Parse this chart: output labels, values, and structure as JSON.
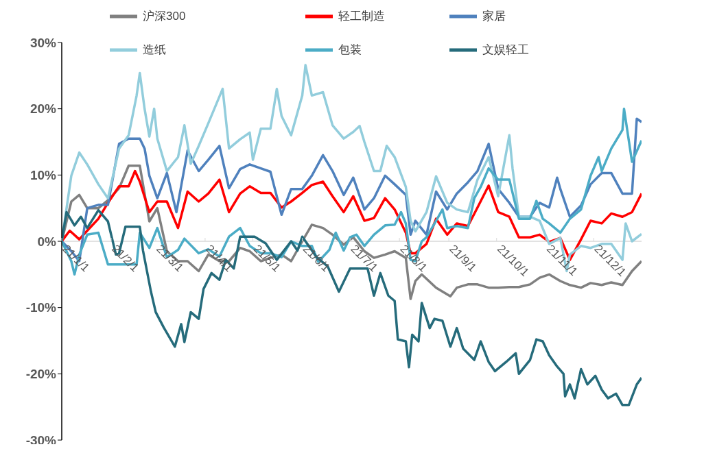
{
  "chart_data": {
    "type": "line",
    "legend": "top",
    "xlim": [
      "--01-01",
      "--12-31"
    ],
    "ylim": [
      -30,
      30
    ],
    "xticks": [
      {
        "value": "--01-01",
        "label": "21/1/1"
      },
      {
        "value": "--02-01",
        "label": "21/2/1"
      },
      {
        "value": "--03-01",
        "label": "21/3/1"
      },
      {
        "value": "--04-01",
        "label": "21/4/1"
      },
      {
        "value": "--05-01",
        "label": "21/5/1"
      },
      {
        "value": "--06-01",
        "label": "21/6/1"
      },
      {
        "value": "--07-01",
        "label": "21/7/1"
      },
      {
        "value": "--08-01",
        "label": "21/8/1"
      },
      {
        "value": "--09-01",
        "label": "21/9/1"
      },
      {
        "value": "--10-01",
        "label": "21/10/1"
      },
      {
        "value": "--11-01",
        "label": "21/11/1"
      },
      {
        "value": "--12-01",
        "label": "21/12/1"
      }
    ],
    "yticks": [
      {
        "value": -30,
        "label": "-30%"
      },
      {
        "value": -20,
        "label": "-20%"
      },
      {
        "value": -10,
        "label": "-10%"
      },
      {
        "value": 0,
        "label": "0%"
      },
      {
        "value": 10,
        "label": "10%"
      },
      {
        "value": 20,
        "label": "20%"
      },
      {
        "value": 30,
        "label": "30%"
      }
    ],
    "series": [
      {
        "name": "沪深300",
        "color": "#808080",
        "x": [
          "--01-01",
          "--01-07",
          "--01-12",
          "--01-17",
          "--01-24",
          "--01-30",
          "--02-06",
          "--02-12",
          "--02-19",
          "--02-25",
          "--03-02",
          "--03-08",
          "--03-15",
          "--03-21",
          "--03-28",
          "--04-03",
          "--04-10",
          "--04-16",
          "--04-23",
          "--04-29",
          "--05-06",
          "--05-12",
          "--05-19",
          "--05-25",
          "--06-01",
          "--06-07",
          "--06-14",
          "--06-20",
          "--06-27",
          "--07-03",
          "--07-10",
          "--07-16",
          "--07-23",
          "--07-29",
          "--08-05",
          "--08-08",
          "--08-11",
          "--08-15",
          "--08-24",
          "--09-02",
          "--09-06",
          "--09-13",
          "--09-19",
          "--09-26",
          "--10-02",
          "--10-09",
          "--10-15",
          "--10-22",
          "--10-28",
          "--11-03",
          "--11-10",
          "--11-16",
          "--11-23",
          "--11-29",
          "--12-06",
          "--12-12",
          "--12-19",
          "--12-25",
          "--12-31"
        ],
        "values": [
          0,
          6,
          7,
          5,
          5,
          6.2,
          8,
          11.4,
          11.4,
          3,
          5,
          -1.5,
          -3,
          -3,
          -4.5,
          -2,
          -3,
          -3,
          -1,
          -1.5,
          -3,
          -2.5,
          -2,
          -3,
          0,
          2.5,
          2,
          1,
          -0.5,
          0.6,
          -1.5,
          -2.5,
          -2,
          -1.5,
          -2.5,
          -8.7,
          -6,
          -5,
          -7,
          -8.3,
          -7,
          -6.5,
          -6.5,
          -7,
          -7,
          -6.9,
          -6.9,
          -6.5,
          -5.5,
          -5,
          -6,
          -6.6,
          -7,
          -6.3,
          -6.6,
          -6.2,
          -6.6,
          -4.5,
          -3
        ]
      },
      {
        "name": "轻工制造",
        "color": "#ff0000",
        "x": [
          "--01-01",
          "--01-06",
          "--01-12",
          "--01-17",
          "--01-24",
          "--01-30",
          "--02-06",
          "--02-12",
          "--02-16",
          "--02-19",
          "--02-25",
          "--03-02",
          "--03-08",
          "--03-15",
          "--03-21",
          "--03-28",
          "--04-03",
          "--04-10",
          "--04-16",
          "--04-23",
          "--04-29",
          "--05-06",
          "--05-12",
          "--05-19",
          "--05-25",
          "--06-01",
          "--06-07",
          "--06-14",
          "--06-20",
          "--06-27",
          "--07-03",
          "--07-10",
          "--07-16",
          "--07-23",
          "--07-29",
          "--08-05",
          "--08-08",
          "--08-11",
          "--08-18",
          "--08-24",
          "--08-31",
          "--09-06",
          "--09-13",
          "--09-19",
          "--09-26",
          "--10-02",
          "--10-09",
          "--10-15",
          "--10-22",
          "--10-28",
          "--11-03",
          "--11-10",
          "--11-16",
          "--11-23",
          "--11-29",
          "--12-06",
          "--12-12",
          "--12-19",
          "--12-25",
          "--12-31"
        ],
        "values": [
          0,
          1.6,
          0.3,
          1.6,
          3.4,
          5.8,
          8.3,
          8.3,
          10.6,
          9,
          4.4,
          6,
          6,
          2,
          7.5,
          6,
          7.2,
          9.3,
          4.4,
          7.2,
          8.3,
          7.3,
          7.3,
          5.1,
          6,
          7.3,
          8.5,
          9,
          6.8,
          4.4,
          6.8,
          3.1,
          3.5,
          6.5,
          4.8,
          1.3,
          -1.8,
          -1.8,
          -0.4,
          3.4,
          1,
          2.7,
          2.3,
          5.1,
          8.4,
          4.4,
          3.7,
          0.6,
          0.6,
          1,
          -0.1,
          0.5,
          -2.8,
          0.3,
          3.1,
          2.7,
          4.2,
          3.7,
          4.4,
          7.2
        ]
      },
      {
        "name": "家居",
        "color": "#4f81bd",
        "x": [
          "--01-01",
          "--01-07",
          "--01-12",
          "--01-17",
          "--01-24",
          "--01-30",
          "--02-06",
          "--02-12",
          "--02-19",
          "--02-22",
          "--02-25",
          "--03-02",
          "--03-08",
          "--03-14",
          "--03-21",
          "--03-28",
          "--04-03",
          "--04-10",
          "--04-16",
          "--04-23",
          "--04-29",
          "--05-06",
          "--05-12",
          "--05-19",
          "--05-25",
          "--06-01",
          "--06-07",
          "--06-14",
          "--06-20",
          "--06-27",
          "--07-03",
          "--07-10",
          "--07-16",
          "--07-23",
          "--07-29",
          "--08-05",
          "--08-08",
          "--08-11",
          "--08-18",
          "--08-24",
          "--08-31",
          "--09-06",
          "--09-13",
          "--09-19",
          "--09-26",
          "--10-02",
          "--10-09",
          "--10-15",
          "--10-22",
          "--10-28",
          "--11-03",
          "--11-08",
          "--11-10",
          "--11-16",
          "--11-23",
          "--11-29",
          "--12-06",
          "--12-12",
          "--12-19",
          "--12-25",
          "--12-28",
          "--12-31"
        ],
        "values": [
          0,
          -1.5,
          -3,
          5,
          5.5,
          5.5,
          14.7,
          15.5,
          15.5,
          14,
          9.9,
          6.5,
          10.3,
          4.4,
          13.7,
          10.6,
          12.3,
          14.4,
          8,
          10.9,
          11.6,
          11,
          10.5,
          4,
          7.9,
          7.9,
          9.9,
          13,
          10.6,
          7,
          9.6,
          4.8,
          6.5,
          9.9,
          8.6,
          7,
          1,
          3.1,
          1,
          7.5,
          4.8,
          7.2,
          8.9,
          10.6,
          14.7,
          7.9,
          5.8,
          3.7,
          3.7,
          5.8,
          5.1,
          9.6,
          7.9,
          3.7,
          5.4,
          8.6,
          10.3,
          10.3,
          7.2,
          7.2,
          18.5,
          18
        ]
      },
      {
        "name": "造纸",
        "color": "#92cddc",
        "x": [
          "--01-01",
          "--01-07",
          "--01-12",
          "--01-17",
          "--01-24",
          "--01-30",
          "--02-06",
          "--02-12",
          "--02-17",
          "--02-19",
          "--02-22",
          "--02-25",
          "--02-28",
          "--03-02",
          "--03-08",
          "--03-15",
          "--03-19",
          "--03-23",
          "--03-28",
          "--04-03",
          "--04-12",
          "--04-16",
          "--04-23",
          "--04-29",
          "--05-01",
          "--05-06",
          "--05-12",
          "--05-16",
          "--05-19",
          "--05-25",
          "--06-01",
          "--06-03",
          "--06-07",
          "--06-14",
          "--06-20",
          "--06-27",
          "--07-03",
          "--07-07",
          "--07-10",
          "--07-16",
          "--07-20",
          "--07-24",
          "--07-29",
          "--08-05",
          "--08-08",
          "--08-11",
          "--08-18",
          "--08-24",
          "--08-31",
          "--09-06",
          "--09-13",
          "--09-19",
          "--09-26",
          "--10-02",
          "--10-09",
          "--10-11",
          "--10-15",
          "--10-22",
          "--10-28",
          "--11-03",
          "--11-10",
          "--11-14",
          "--11-16",
          "--11-23",
          "--11-29",
          "--12-06",
          "--12-12",
          "--12-19",
          "--12-21",
          "--12-25",
          "--12-31"
        ],
        "values": [
          0,
          9.9,
          13.4,
          11.6,
          8.6,
          6.5,
          14,
          16,
          22,
          25.4,
          20,
          15.8,
          20,
          15.5,
          10.6,
          12.7,
          17.5,
          11.7,
          14.4,
          17.8,
          23,
          14,
          15.4,
          16.4,
          12.3,
          17,
          17,
          23,
          18.9,
          16,
          22,
          26.6,
          22,
          22.5,
          17.5,
          15.5,
          16.5,
          17.4,
          15,
          10.6,
          10.6,
          14.4,
          12.7,
          8.2,
          3.1,
          1.5,
          4.4,
          9.8,
          5.8,
          4.8,
          4.4,
          9.3,
          12.7,
          6.8,
          16,
          11,
          3.7,
          3.7,
          3.1,
          -0.4,
          0.5,
          -4.5,
          -2,
          -0.7,
          -1,
          -0.4,
          -0.4,
          -2.8,
          2.7,
          0,
          1.1
        ]
      },
      {
        "name": "包装",
        "color": "#4bacc6",
        "x": [
          "--01-01",
          "--01-07",
          "--01-09",
          "--01-12",
          "--01-17",
          "--01-24",
          "--01-30",
          "--02-06",
          "--02-12",
          "--02-17",
          "--02-19",
          "--02-25",
          "--03-02",
          "--03-08",
          "--03-15",
          "--03-19",
          "--03-28",
          "--04-03",
          "--04-10",
          "--04-16",
          "--04-23",
          "--04-29",
          "--05-06",
          "--05-12",
          "--05-19",
          "--05-25",
          "--06-01",
          "--06-07",
          "--06-11",
          "--06-18",
          "--06-22",
          "--06-27",
          "--07-01",
          "--07-05",
          "--07-10",
          "--07-16",
          "--07-23",
          "--07-29",
          "--08-02",
          "--08-05",
          "--08-08",
          "--08-11",
          "--08-15",
          "--08-18",
          "--08-24",
          "--08-28",
          "--08-31",
          "--09-06",
          "--09-13",
          "--09-17",
          "--09-21",
          "--09-26",
          "--10-02",
          "--10-09",
          "--10-15",
          "--10-22",
          "--10-26",
          "--10-30",
          "--11-03",
          "--11-10",
          "--11-16",
          "--11-23",
          "--11-29",
          "--12-04",
          "--12-06",
          "--12-12",
          "--12-19",
          "--12-20",
          "--12-25",
          "--12-31"
        ],
        "values": [
          0,
          -3,
          -5,
          -2,
          1,
          1.3,
          -3.5,
          -3.5,
          -3.5,
          -3.5,
          1.3,
          -1,
          2,
          -2.4,
          -1.3,
          0.4,
          -1.8,
          -1.2,
          -2.3,
          0.7,
          2,
          -0.7,
          -1.8,
          -1.8,
          -2.4,
          0,
          -0.7,
          -0.7,
          -3.1,
          -1.3,
          1.3,
          -1.4,
          0.6,
          1,
          -0.7,
          1,
          2.4,
          2.5,
          4.4,
          2.7,
          -2.8,
          -3,
          0,
          0.6,
          3.1,
          4.8,
          2,
          2.3,
          2,
          6.5,
          8.2,
          11,
          9.3,
          9.3,
          3.4,
          3.4,
          6.1,
          3.4,
          2.7,
          1.3,
          3.4,
          4.8,
          9.9,
          12.7,
          10.6,
          14,
          16.8,
          20,
          12,
          15.2
        ]
      },
      {
        "name": "文娱轻工",
        "color": "#256b7b",
        "x": [
          "--01-01",
          "--01-04",
          "--01-09",
          "--01-13",
          "--01-17",
          "--01-24",
          "--01-30",
          "--02-04",
          "--02-06",
          "--02-10",
          "--02-19",
          "--02-21",
          "--02-26",
          "--03-01",
          "--03-06",
          "--03-13",
          "--03-17",
          "--03-19",
          "--03-23",
          "--03-28",
          "--03-31",
          "--04-05",
          "--04-10",
          "--04-14",
          "--04-19",
          "--04-23",
          "--05-02",
          "--05-09",
          "--05-16",
          "--05-25",
          "--05-29",
          "--06-01",
          "--06-10",
          "--06-17",
          "--06-24",
          "--07-01",
          "--07-07",
          "--07-12",
          "--07-16",
          "--07-20",
          "--07-25",
          "--07-29",
          "--07-31",
          "--08-05",
          "--08-07",
          "--08-09",
          "--08-13",
          "--08-15",
          "--08-20",
          "--08-23",
          "--08-28",
          "--09-02",
          "--09-06",
          "--09-10",
          "--09-17",
          "--09-21",
          "--09-26",
          "--09-30",
          "--10-07",
          "--10-13",
          "--10-15",
          "--10-22",
          "--10-26",
          "--10-30",
          "--11-03",
          "--11-08",
          "--11-12",
          "--11-13",
          "--11-16",
          "--11-19",
          "--11-23",
          "--11-27",
          "--12-02",
          "--12-06",
          "--12-10",
          "--12-15",
          "--12-19",
          "--12-23",
          "--12-28",
          "--12-31"
        ],
        "values": [
          0,
          4.4,
          2.4,
          3.7,
          2,
          4.7,
          3,
          -2,
          -1.8,
          2.2,
          2.2,
          -1.4,
          -7.6,
          -10.7,
          -13,
          -15.9,
          -12.5,
          -15.2,
          -10.7,
          -11.7,
          -7.2,
          -4.8,
          -5.8,
          -2.8,
          -4.1,
          0.7,
          0.7,
          -0.3,
          -2.8,
          0,
          -1.4,
          0.7,
          -2.4,
          -3.8,
          -7.6,
          -4.1,
          -4.1,
          -4.1,
          -8.2,
          -4.8,
          -8.2,
          -9,
          -14.8,
          -15.1,
          -19,
          -14.1,
          -15.1,
          -9.3,
          -13.1,
          -11.7,
          -12,
          -15.9,
          -13.1,
          -16.2,
          -17.9,
          -15.1,
          -18.2,
          -19.6,
          -18.2,
          -16.9,
          -20,
          -17.9,
          -14.8,
          -15.1,
          -17.2,
          -18.9,
          -20,
          -23.4,
          -21.6,
          -23.7,
          -19.3,
          -21.6,
          -20.3,
          -22.4,
          -23.7,
          -23,
          -24.7,
          -24.7,
          -21.6,
          -20.6
        ]
      }
    ]
  }
}
